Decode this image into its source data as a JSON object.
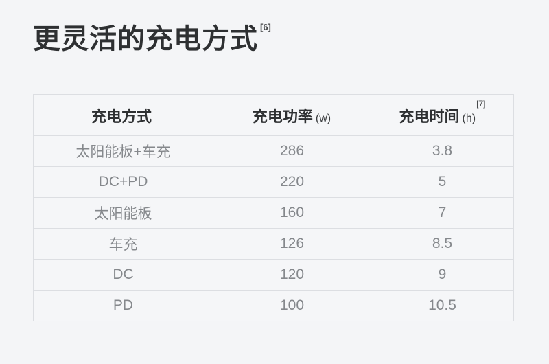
{
  "title": {
    "text": "更灵活的充电方式",
    "superscript": "[6]"
  },
  "table": {
    "header": [
      {
        "label": "充电方式",
        "unit": "",
        "sup": ""
      },
      {
        "label": "充电功率",
        "unit": "(w)",
        "sup": ""
      },
      {
        "label": "充电时间",
        "unit": "(h)",
        "sup": "[7]"
      }
    ],
    "rows": [
      {
        "method": "太阳能板+车充",
        "power": "286",
        "time": "3.8"
      },
      {
        "method": "DC+PD",
        "power": "220",
        "time": "5"
      },
      {
        "method": "太阳能板",
        "power": "160",
        "time": "7"
      },
      {
        "method": "车充",
        "power": "126",
        "time": "8.5"
      },
      {
        "method": "DC",
        "power": "120",
        "time": "9"
      },
      {
        "method": "PD",
        "power": "100",
        "time": "10.5"
      }
    ]
  },
  "colors": {
    "page_background": "#f4f5f7",
    "cell_background": "#f5f6f8",
    "table_border": "#dcdee2",
    "heading_text": "#2e3032",
    "cell_text": "#85888c"
  },
  "chart_data": {
    "type": "table",
    "title": "更灵活的充电方式",
    "columns": [
      "充电方式",
      "充电功率 (w)",
      "充电时间 (h)"
    ],
    "rows": [
      [
        "太阳能板+车充",
        286,
        3.8
      ],
      [
        "DC+PD",
        220,
        5
      ],
      [
        "太阳能板",
        160,
        7
      ],
      [
        "车充",
        126,
        8.5
      ],
      [
        "DC",
        120,
        9
      ],
      [
        "PD",
        100,
        10.5
      ]
    ]
  }
}
